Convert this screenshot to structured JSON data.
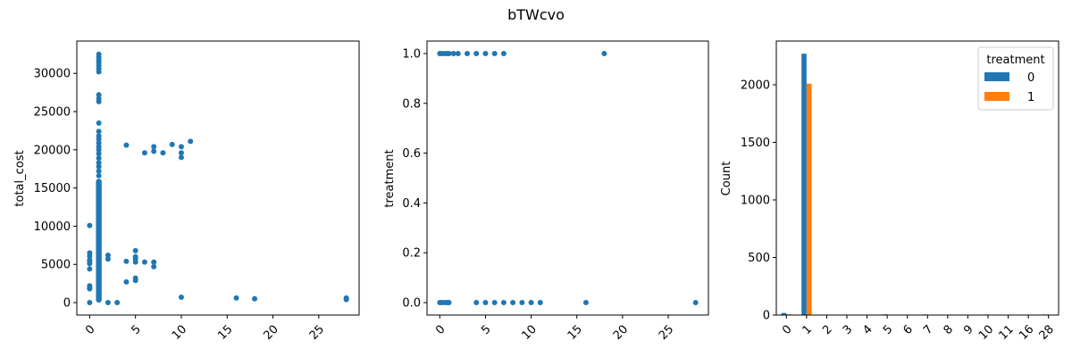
{
  "figure": {
    "title": "bTWcvo"
  },
  "chart_data": [
    {
      "type": "scatter",
      "ylabel": "total_cost",
      "xlabel": "",
      "xlim": [
        -1.4,
        29.4
      ],
      "ylim": [
        -1630,
        34230
      ],
      "xticks": [
        0,
        5,
        10,
        15,
        20,
        25
      ],
      "yticks": [
        0,
        5000,
        10000,
        15000,
        20000,
        25000,
        30000
      ],
      "color": "#1f77b4",
      "column_points": {
        "x": 1,
        "y_min": 0,
        "y_max": 16200
      },
      "points": [
        [
          0,
          0
        ],
        [
          0,
          1800
        ],
        [
          0,
          2000
        ],
        [
          0,
          2200
        ],
        [
          0,
          4400
        ],
        [
          0,
          5100
        ],
        [
          0,
          5400
        ],
        [
          0,
          5600
        ],
        [
          0,
          6100
        ],
        [
          0,
          6500
        ],
        [
          0,
          10100
        ],
        [
          1,
          16600
        ],
        [
          1,
          17200
        ],
        [
          1,
          17800
        ],
        [
          1,
          18300
        ],
        [
          1,
          18900
        ],
        [
          1,
          19500
        ],
        [
          1,
          20000
        ],
        [
          1,
          20400
        ],
        [
          1,
          20900
        ],
        [
          1,
          21400
        ],
        [
          1,
          21800
        ],
        [
          1,
          22400
        ],
        [
          1,
          23500
        ],
        [
          1,
          26300
        ],
        [
          1,
          26700
        ],
        [
          1,
          27200
        ],
        [
          1,
          30200
        ],
        [
          1,
          30600
        ],
        [
          1,
          31000
        ],
        [
          1,
          31400
        ],
        [
          1,
          31700
        ],
        [
          1,
          32100
        ],
        [
          1,
          32500
        ],
        [
          2,
          0
        ],
        [
          2,
          5700
        ],
        [
          2,
          6200
        ],
        [
          3,
          0
        ],
        [
          4,
          2700
        ],
        [
          4,
          5400
        ],
        [
          4,
          20600
        ],
        [
          5,
          2900
        ],
        [
          5,
          3200
        ],
        [
          5,
          5300
        ],
        [
          5,
          5700
        ],
        [
          5,
          6000
        ],
        [
          5,
          6800
        ],
        [
          6,
          5300
        ],
        [
          6,
          19600
        ],
        [
          7,
          4700
        ],
        [
          7,
          5300
        ],
        [
          7,
          19800
        ],
        [
          7,
          20400
        ],
        [
          8,
          19600
        ],
        [
          9,
          20700
        ],
        [
          10,
          700
        ],
        [
          10,
          19000
        ],
        [
          10,
          19600
        ],
        [
          10,
          20400
        ],
        [
          11,
          21100
        ],
        [
          16,
          600
        ],
        [
          18,
          500
        ],
        [
          28,
          400
        ],
        [
          28,
          600
        ]
      ]
    },
    {
      "type": "scatter",
      "ylabel": "treatment",
      "xlabel": "",
      "xlim": [
        -1.4,
        29.4
      ],
      "ylim": [
        -0.05,
        1.05
      ],
      "xticks": [
        0,
        5,
        10,
        15,
        20,
        25
      ],
      "yticks": [
        "0.0",
        "0.2",
        "0.4",
        "0.6",
        "0.8",
        "1.0"
      ],
      "ytick_values": [
        0,
        0.2,
        0.4,
        0.6,
        0.8,
        1.0
      ],
      "color": "#1f77b4",
      "points": [
        [
          0,
          1
        ],
        [
          0.2,
          1
        ],
        [
          0.5,
          1
        ],
        [
          0.8,
          1
        ],
        [
          1,
          1
        ],
        [
          1.5,
          1
        ],
        [
          2,
          1
        ],
        [
          3,
          1
        ],
        [
          4,
          1
        ],
        [
          5,
          1
        ],
        [
          6,
          1
        ],
        [
          7,
          1
        ],
        [
          18,
          1
        ],
        [
          0,
          0
        ],
        [
          0.2,
          0
        ],
        [
          0.5,
          0
        ],
        [
          0.8,
          0
        ],
        [
          1,
          0
        ],
        [
          4,
          0
        ],
        [
          5,
          0
        ],
        [
          6,
          0
        ],
        [
          7,
          0
        ],
        [
          8,
          0
        ],
        [
          9,
          0
        ],
        [
          10,
          0
        ],
        [
          11,
          0
        ],
        [
          16,
          0
        ],
        [
          28,
          0
        ]
      ]
    },
    {
      "type": "bar",
      "ylabel": "Count",
      "xlabel": "",
      "ylim": [
        0,
        2380
      ],
      "yticks": [
        0,
        500,
        1000,
        1500,
        2000
      ],
      "categories": [
        "0",
        "1",
        "2",
        "3",
        "4",
        "5",
        "6",
        "7",
        "8",
        "9",
        "10",
        "11",
        "16",
        "28"
      ],
      "legend": {
        "title": "treatment",
        "position": "top-right"
      },
      "series": [
        {
          "name": "0",
          "color": "#1f77b4",
          "values": [
            18,
            2270,
            3,
            2,
            4,
            6,
            3,
            5,
            2,
            2,
            5,
            1,
            1,
            5
          ]
        },
        {
          "name": "1",
          "color": "#ff7f0e",
          "values": [
            6,
            2010,
            4,
            3,
            3,
            4,
            2,
            3,
            0,
            1,
            2,
            0,
            0,
            1
          ]
        }
      ]
    }
  ]
}
